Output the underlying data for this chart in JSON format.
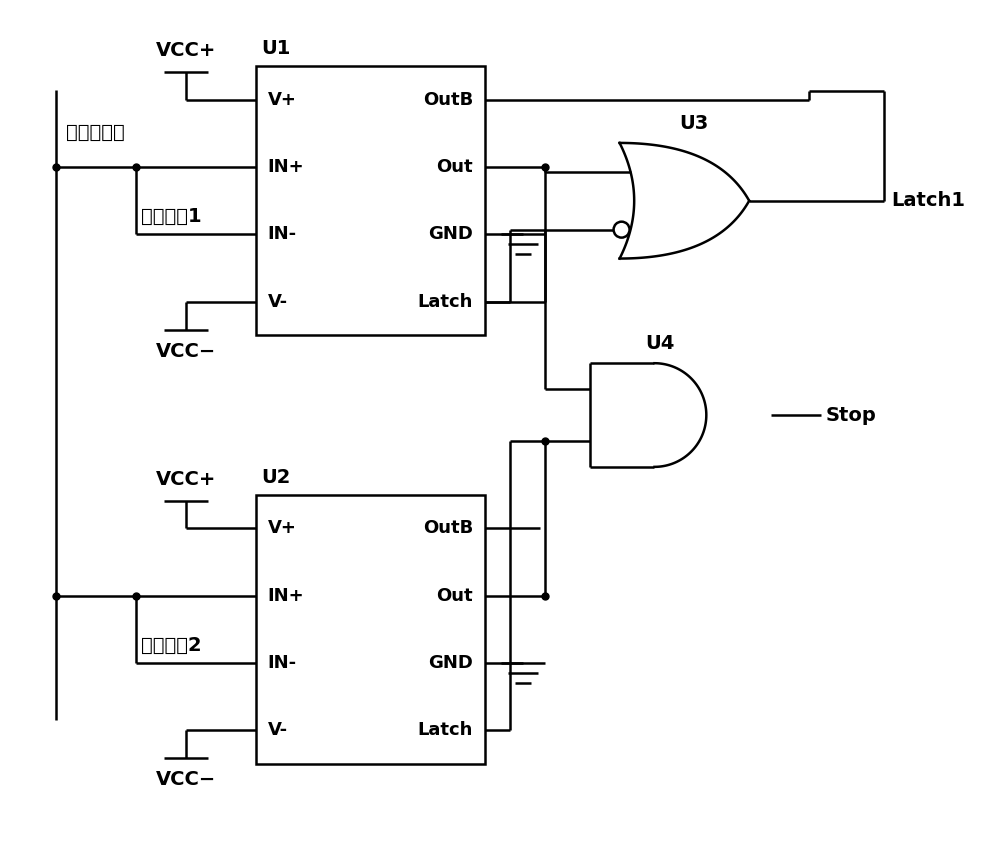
{
  "bg_color": "#ffffff",
  "u1_label": "U1",
  "u2_label": "U2",
  "u3_label": "U3",
  "u4_label": "U4",
  "pins_left": [
    "V+",
    "IN+",
    "IN-",
    "V-"
  ],
  "pins_right": [
    "OutB",
    "Out",
    "GND",
    "Latch"
  ],
  "vcc_plus": "VCC+",
  "vcc_minus": "VCC−",
  "signal_label": "超声波信号",
  "threshold1_label": "检测阈倃1",
  "threshold2_label": "检测阈倃2",
  "latch1_label": "Latch1",
  "stop_label": "Stop",
  "fs_main": 14,
  "fs_pin": 13,
  "lw": 1.8
}
